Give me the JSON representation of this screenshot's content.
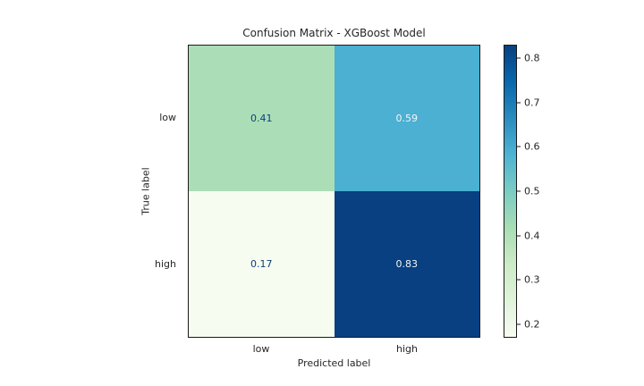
{
  "figure": {
    "background_color": "#ffffff",
    "text_color": "#262626",
    "spine_color": "#1a1a1a"
  },
  "chart_data": {
    "type": "heatmap",
    "title": "Confusion Matrix - XGBoost Model",
    "xlabel": "Predicted label",
    "ylabel": "True label",
    "x_categories": [
      "low",
      "high"
    ],
    "y_categories": [
      "low",
      "high"
    ],
    "values": [
      [
        0.41,
        0.59
      ],
      [
        0.17,
        0.83
      ]
    ],
    "cell_labels": [
      [
        "0.41",
        "0.59"
      ],
      [
        "0.17",
        "0.83"
      ]
    ],
    "cell_colors": [
      [
        "#abdeb6",
        "#4bb0d1"
      ],
      [
        "#f7fcf0",
        "#084081"
      ]
    ],
    "cell_text_colors": [
      [
        "#0d3f7d",
        "#f5f5f5"
      ],
      [
        "#0d3f7d",
        "#f5f5f5"
      ]
    ],
    "colormap": "GnBu",
    "grid": false,
    "legend_position": "right-colorbar",
    "colorbar": {
      "vmin": 0.17,
      "vmax": 0.83,
      "ticks": [
        0.2,
        0.3,
        0.4,
        0.5,
        0.6,
        0.7,
        0.8
      ],
      "gradient_stops": [
        "#f7fcf0",
        "#e0f3db",
        "#ccebc5",
        "#a8ddb5",
        "#7bccc4",
        "#4eb3d3",
        "#2b8cbe",
        "#0868ac",
        "#084081"
      ]
    }
  }
}
